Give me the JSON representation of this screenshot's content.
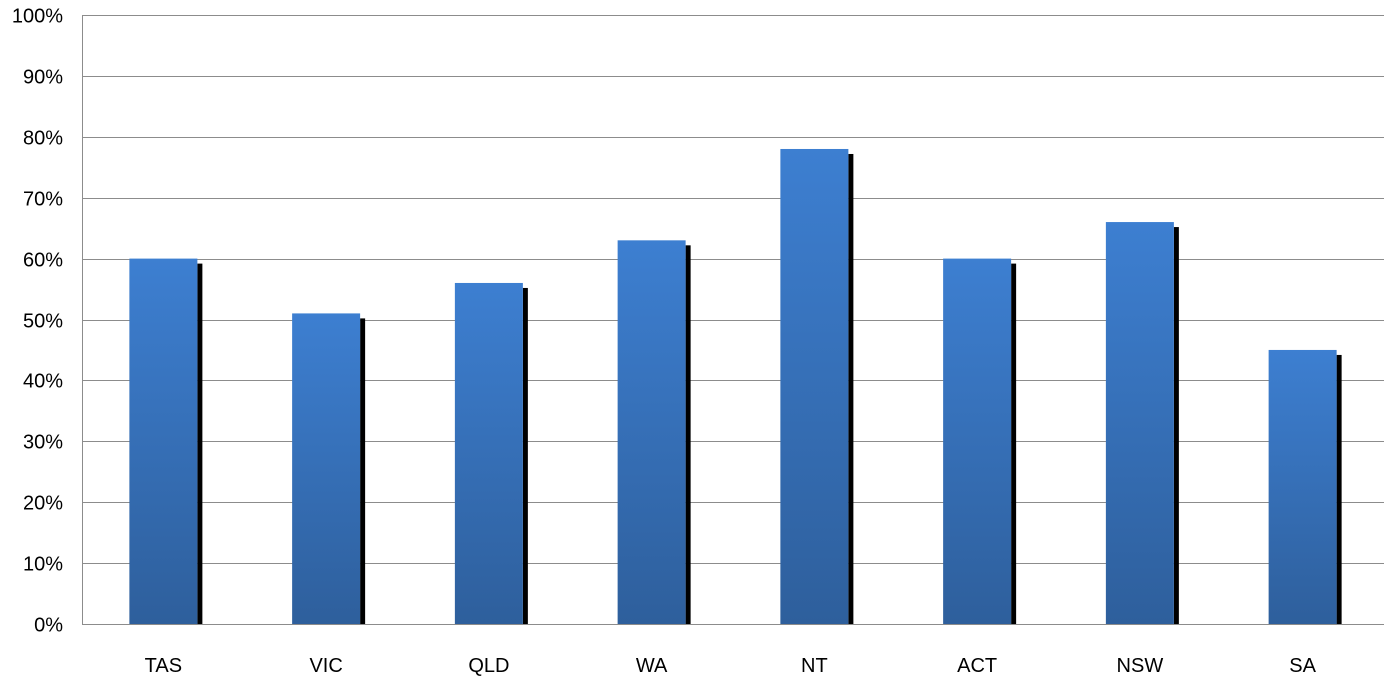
{
  "chart_data": {
    "type": "bar",
    "title": "",
    "xlabel": "",
    "ylabel": "",
    "categories": [
      "TAS",
      "VIC",
      "QLD",
      "WA",
      "NT",
      "ACT",
      "NSW",
      "SA"
    ],
    "values": [
      60,
      51,
      56,
      63,
      78,
      60,
      66,
      45
    ],
    "unit": "%",
    "ylim": [
      0,
      100
    ],
    "yticks": [
      "0%",
      "10%",
      "20%",
      "30%",
      "40%",
      "50%",
      "60%",
      "70%",
      "80%",
      "90%",
      "100%"
    ],
    "grid": true,
    "legend": "none",
    "colors": {
      "bar_top": "#3d7fd1",
      "bar_bottom": "#2e5f9c",
      "shadow": "#000000",
      "grid": "#8c8c8c"
    }
  }
}
